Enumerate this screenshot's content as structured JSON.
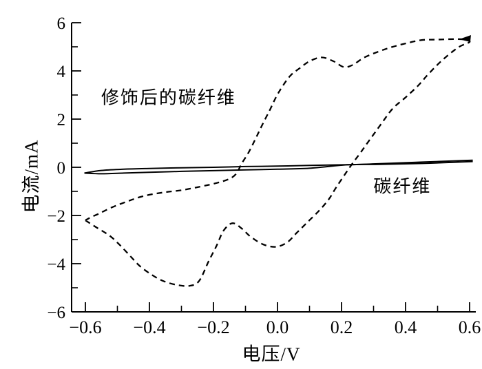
{
  "figure": {
    "background_color": "#ffffff",
    "line_color": "#000000"
  },
  "chart_data": {
    "type": "line",
    "title": "",
    "xlabel": "电压/V",
    "ylabel": "电流/mA",
    "xlim": [
      -0.6,
      0.6
    ],
    "ylim": [
      -6,
      6
    ],
    "grid": false,
    "legend_position": "none",
    "x_major_ticks": [
      -0.6,
      -0.4,
      -0.2,
      0.0,
      0.2,
      0.4,
      0.6
    ],
    "x_major_tick_labels": [
      "−0.6",
      "−0.4",
      "−0.2",
      "0.0",
      "0.2",
      "0.4",
      "0.6"
    ],
    "x_minor_ticks": [
      -0.5,
      -0.3,
      -0.1,
      0.1,
      0.3,
      0.5
    ],
    "y_major_ticks": [
      6,
      4,
      2,
      0,
      -2,
      -4,
      -6
    ],
    "y_major_tick_labels": [
      "6",
      "4",
      "2",
      "0",
      "−2",
      "−4",
      "−6"
    ],
    "y_minor_ticks": [
      5,
      3,
      1,
      -1,
      -3,
      -5
    ],
    "series": [
      {
        "name": "修饰后的碳纤维",
        "line_style": "dashed",
        "color": "#000000",
        "closed_loop": true,
        "points_forward_scan": [
          [
            -0.6,
            -2.2
          ],
          [
            -0.565,
            -2.5
          ],
          [
            -0.523,
            -2.85
          ],
          [
            -0.49,
            -3.26
          ],
          [
            -0.458,
            -3.71
          ],
          [
            -0.43,
            -4.1
          ],
          [
            -0.394,
            -4.45
          ],
          [
            -0.357,
            -4.72
          ],
          [
            -0.315,
            -4.88
          ],
          [
            -0.275,
            -4.92
          ],
          [
            -0.245,
            -4.72
          ],
          [
            -0.215,
            -3.9
          ],
          [
            -0.19,
            -3.25
          ],
          [
            -0.168,
            -2.62
          ],
          [
            -0.14,
            -2.32
          ],
          [
            -0.11,
            -2.56
          ],
          [
            -0.085,
            -2.87
          ],
          [
            -0.045,
            -3.2
          ],
          [
            -0.005,
            -3.3
          ],
          [
            0.03,
            -3.12
          ],
          [
            0.06,
            -2.72
          ],
          [
            0.095,
            -2.26
          ],
          [
            0.13,
            -1.8
          ],
          [
            0.16,
            -1.33
          ],
          [
            0.185,
            -0.8
          ],
          [
            0.23,
            0.08
          ],
          [
            0.26,
            0.62
          ],
          [
            0.29,
            1.18
          ],
          [
            0.325,
            1.82
          ],
          [
            0.36,
            2.44
          ],
          [
            0.4,
            2.9
          ],
          [
            0.44,
            3.4
          ],
          [
            0.47,
            3.85
          ],
          [
            0.515,
            4.45
          ],
          [
            0.565,
            4.98
          ],
          [
            0.6,
            5.2
          ]
        ],
        "points_reverse_scan": [
          [
            0.6,
            5.2
          ],
          [
            0.585,
            5.3
          ],
          [
            0.55,
            5.32
          ],
          [
            0.5,
            5.3
          ],
          [
            0.45,
            5.28
          ],
          [
            0.4,
            5.14
          ],
          [
            0.355,
            4.98
          ],
          [
            0.315,
            4.8
          ],
          [
            0.27,
            4.55
          ],
          [
            0.235,
            4.25
          ],
          [
            0.207,
            4.16
          ],
          [
            0.175,
            4.4
          ],
          [
            0.138,
            4.56
          ],
          [
            0.1,
            4.4
          ],
          [
            0.068,
            4.1
          ],
          [
            0.04,
            3.8
          ],
          [
            0.015,
            3.35
          ],
          [
            -0.005,
            2.9
          ],
          [
            -0.025,
            2.35
          ],
          [
            -0.048,
            1.75
          ],
          [
            -0.068,
            1.2
          ],
          [
            -0.09,
            0.62
          ],
          [
            -0.112,
            0.15
          ],
          [
            -0.128,
            -0.25
          ],
          [
            -0.15,
            -0.48
          ],
          [
            -0.19,
            -0.65
          ],
          [
            -0.24,
            -0.8
          ],
          [
            -0.3,
            -0.95
          ],
          [
            -0.36,
            -1.05
          ],
          [
            -0.42,
            -1.2
          ],
          [
            -0.47,
            -1.42
          ],
          [
            -0.52,
            -1.68
          ],
          [
            -0.557,
            -1.92
          ],
          [
            -0.582,
            -2.07
          ],
          [
            -0.6,
            -2.2
          ]
        ]
      },
      {
        "name": "碳纤维",
        "line_style": "solid",
        "color": "#000000",
        "closed_loop": true,
        "points_upper_branch": [
          [
            -0.603,
            -0.24
          ],
          [
            -0.55,
            -0.13
          ],
          [
            -0.48,
            -0.08
          ],
          [
            -0.4,
            -0.05
          ],
          [
            -0.3,
            -0.02
          ],
          [
            -0.2,
            0.0
          ],
          [
            -0.1,
            0.03
          ],
          [
            0.0,
            0.05
          ],
          [
            0.1,
            0.08
          ],
          [
            0.22,
            0.105
          ],
          [
            0.32,
            0.15
          ],
          [
            0.42,
            0.2
          ],
          [
            0.52,
            0.25
          ],
          [
            0.61,
            0.29
          ]
        ],
        "points_lower_branch": [
          [
            -0.603,
            -0.24
          ],
          [
            -0.55,
            -0.27
          ],
          [
            -0.48,
            -0.24
          ],
          [
            -0.4,
            -0.21
          ],
          [
            -0.3,
            -0.17
          ],
          [
            -0.2,
            -0.14
          ],
          [
            -0.1,
            -0.11
          ],
          [
            0.0,
            -0.08
          ],
          [
            0.1,
            -0.04
          ],
          [
            0.22,
            0.105
          ],
          [
            0.32,
            0.12
          ],
          [
            0.42,
            0.15
          ],
          [
            0.52,
            0.19
          ],
          [
            0.61,
            0.24
          ]
        ]
      }
    ],
    "annotations": [
      {
        "text": "修饰后的碳纤维",
        "x": -0.34,
        "y": 2.94
      },
      {
        "text": "碳纤维",
        "x": 0.39,
        "y": -0.74
      }
    ],
    "scan_direction_arrow": {
      "x": 0.587,
      "y": 5.37,
      "points_to": "left"
    }
  }
}
